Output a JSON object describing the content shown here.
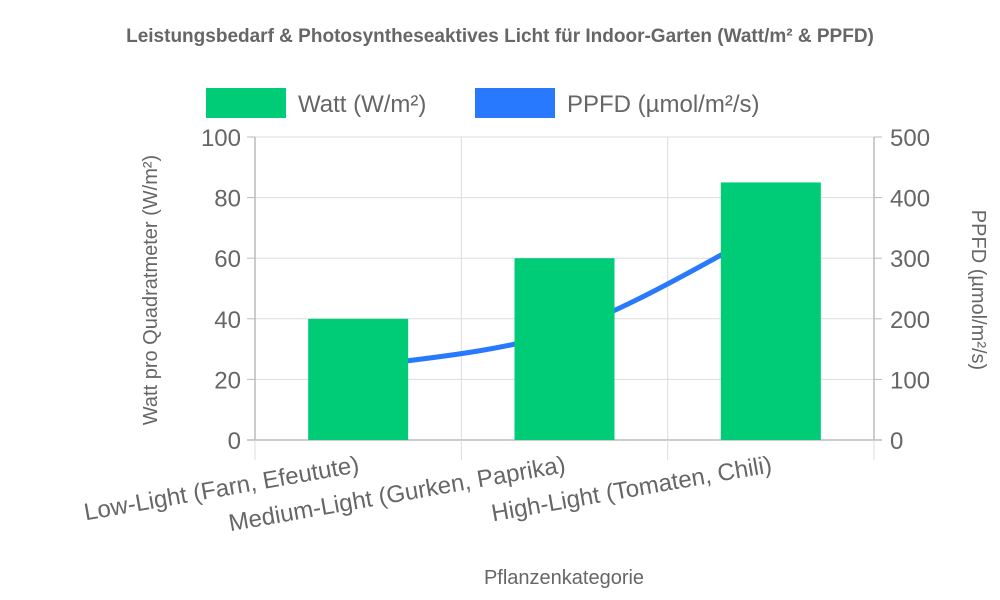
{
  "chart_data": {
    "type": "bar",
    "title": "Leistungsbedarf & Photosyntheseaktives Licht für Indoor-Garten (Watt/m² & PPFD)",
    "xlabel": "Pflanzenkategorie",
    "ylabel": "Watt pro Quadratmeter (W/m²)",
    "y2label": "PPFD (µmol/m²/s)",
    "categories": [
      "Low-Light (Farn, Efeutute)",
      "Medium-Light (Gurken, Paprika)",
      "High-Light (Tomaten, Chili)"
    ],
    "ylim": [
      0,
      100
    ],
    "y2lim": [
      0,
      500
    ],
    "yticks": [
      0,
      20,
      40,
      60,
      80,
      100
    ],
    "y2ticks": [
      0,
      100,
      200,
      300,
      400,
      500
    ],
    "grid": true,
    "legend_position": "top",
    "series": [
      {
        "name": "Watt (W/m²)",
        "type": "bar",
        "axis": "left",
        "color": "#00cc77",
        "values": [
          40,
          60,
          85
        ]
      },
      {
        "name": "PPFD (µmol/m²/s)",
        "type": "line",
        "axis": "right",
        "color": "#2979ff",
        "values": [
          120,
          180,
          350
        ]
      }
    ]
  }
}
